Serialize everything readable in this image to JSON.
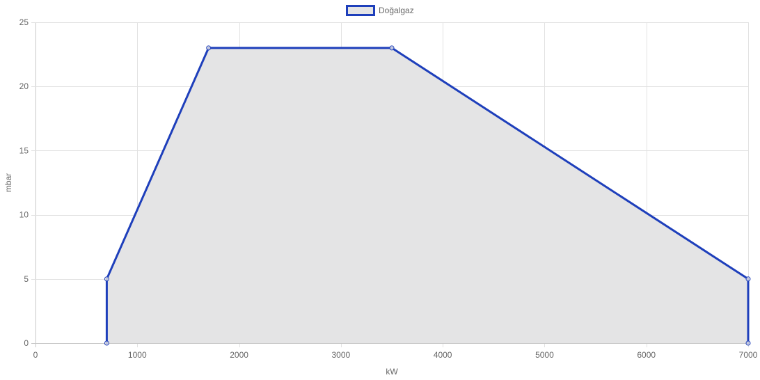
{
  "chart_data": {
    "type": "area",
    "title": "",
    "xlabel": "kW",
    "ylabel": "mbar",
    "xlim": [
      0,
      7000
    ],
    "ylim": [
      0,
      25
    ],
    "x_ticks": [
      0,
      1000,
      2000,
      3000,
      4000,
      5000,
      6000,
      7000
    ],
    "y_ticks": [
      0,
      5,
      10,
      15,
      20,
      25
    ],
    "grid": true,
    "legend_position": "top-center",
    "series": [
      {
        "name": "Doğalgaz",
        "color": "#1e3fbb",
        "fill": "#e4e4e5",
        "points": [
          {
            "x": 700,
            "y": 0
          },
          {
            "x": 700,
            "y": 5
          },
          {
            "x": 1700,
            "y": 23
          },
          {
            "x": 3500,
            "y": 23
          },
          {
            "x": 7000,
            "y": 5
          },
          {
            "x": 7000,
            "y": 0
          }
        ]
      }
    ]
  }
}
